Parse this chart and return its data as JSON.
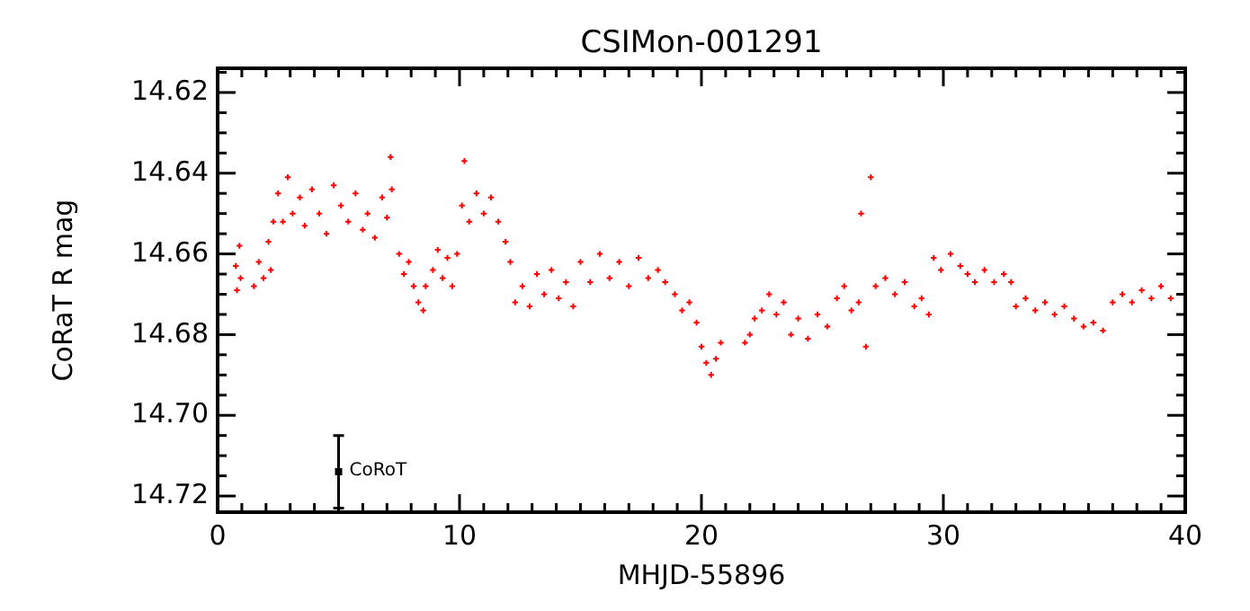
{
  "chart_data": {
    "type": "scatter",
    "title": "CSIMon-001291",
    "xlabel": "MHJD-55896",
    "ylabel": "CoRaT R mag",
    "marker": "cross",
    "grid": false,
    "xlim": [
      0,
      40
    ],
    "ylim": [
      14.724,
      14.614
    ],
    "xticks": [
      0,
      {
        "value": 1,
        "label": null
      },
      {
        "value": 2,
        "label": null
      },
      {
        "value": 3,
        "label": null
      },
      {
        "value": 4,
        "label": null
      },
      {
        "value": 5,
        "label": null
      },
      {
        "value": 6,
        "label": null
      },
      {
        "value": 7,
        "label": null
      },
      {
        "value": 8,
        "label": null
      },
      {
        "value": 9,
        "label": null
      },
      10,
      {
        "value": 11,
        "label": null
      },
      {
        "value": 12,
        "label": null
      },
      {
        "value": 13,
        "label": null
      },
      {
        "value": 14,
        "label": null
      },
      {
        "value": 15,
        "label": null
      },
      {
        "value": 16,
        "label": null
      },
      {
        "value": 17,
        "label": null
      },
      {
        "value": 18,
        "label": null
      },
      {
        "value": 19,
        "label": null
      },
      20,
      {
        "value": 21,
        "label": null
      },
      {
        "value": 22,
        "label": null
      },
      {
        "value": 23,
        "label": null
      },
      {
        "value": 24,
        "label": null
      },
      {
        "value": 25,
        "label": null
      },
      {
        "value": 26,
        "label": null
      },
      {
        "value": 27,
        "label": null
      },
      {
        "value": 28,
        "label": null
      },
      {
        "value": 29,
        "label": null
      },
      30,
      {
        "value": 31,
        "label": null
      },
      {
        "value": 32,
        "label": null
      },
      {
        "value": 33,
        "label": null
      },
      {
        "value": 34,
        "label": null
      },
      {
        "value": 35,
        "label": null
      },
      {
        "value": 36,
        "label": null
      },
      {
        "value": 37,
        "label": null
      },
      {
        "value": 38,
        "label": null
      },
      {
        "value": 39,
        "label": null
      },
      40
    ],
    "yticks": [
      {
        "value": 14.615,
        "label": null
      },
      {
        "value": 14.62,
        "label": "14.62"
      },
      {
        "value": 14.625,
        "label": null
      },
      {
        "value": 14.63,
        "label": null
      },
      {
        "value": 14.635,
        "label": null
      },
      {
        "value": 14.64,
        "label": "14.64"
      },
      {
        "value": 14.645,
        "label": null
      },
      {
        "value": 14.65,
        "label": null
      },
      {
        "value": 14.655,
        "label": null
      },
      {
        "value": 14.66,
        "label": "14.66"
      },
      {
        "value": 14.665,
        "label": null
      },
      {
        "value": 14.67,
        "label": null
      },
      {
        "value": 14.675,
        "label": null
      },
      {
        "value": 14.68,
        "label": "14.68"
      },
      {
        "value": 14.685,
        "label": null
      },
      {
        "value": 14.69,
        "label": null
      },
      {
        "value": 14.695,
        "label": null
      },
      {
        "value": 14.7,
        "label": "14.70"
      },
      {
        "value": 14.705,
        "label": null
      },
      {
        "value": 14.71,
        "label": null
      },
      {
        "value": 14.715,
        "label": null
      },
      {
        "value": 14.72,
        "label": "14.72"
      }
    ],
    "series": [
      {
        "color": "#ff0000",
        "x": [
          0.75,
          0.8,
          0.9,
          0.95,
          1.5,
          1.7,
          1.9,
          2.1,
          2.3,
          2.2,
          2.5,
          2.7,
          2.9,
          3.1,
          3.4,
          3.6,
          3.9,
          4.2,
          4.5,
          4.8,
          5.1,
          5.4,
          5.7,
          6.0,
          6.2,
          6.5,
          6.8,
          7.0,
          7.15,
          7.2,
          7.5,
          7.7,
          7.9,
          8.1,
          8.3,
          8.5,
          8.6,
          8.9,
          9.1,
          9.3,
          9.5,
          9.7,
          9.9,
          10.1,
          10.2,
          10.4,
          10.7,
          11.0,
          11.3,
          11.6,
          11.9,
          12.1,
          12.3,
          12.6,
          12.9,
          13.2,
          13.5,
          13.8,
          14.1,
          14.4,
          14.7,
          15.0,
          15.4,
          15.8,
          16.2,
          16.6,
          17.0,
          17.4,
          17.8,
          18.2,
          18.5,
          18.9,
          19.2,
          19.5,
          19.8,
          20.0,
          20.2,
          20.4,
          20.6,
          20.8,
          21.8,
          22.0,
          22.2,
          22.5,
          22.8,
          23.1,
          23.4,
          23.7,
          24.0,
          24.4,
          24.8,
          25.2,
          25.6,
          25.9,
          26.2,
          26.5,
          26.6,
          26.8,
          27.0,
          27.2,
          27.6,
          28.0,
          28.4,
          28.8,
          29.1,
          29.4,
          29.6,
          29.9,
          30.3,
          30.7,
          31.0,
          31.3,
          31.7,
          32.1,
          32.5,
          32.8,
          33.0,
          33.4,
          33.8,
          34.2,
          34.6,
          35.0,
          35.4,
          35.8,
          36.2,
          36.6,
          37.0,
          37.4,
          37.8,
          38.2,
          38.6,
          39.0,
          39.4
        ],
        "values": [
          14.663,
          14.669,
          14.658,
          14.666,
          14.668,
          14.662,
          14.666,
          14.657,
          14.652,
          14.664,
          14.645,
          14.652,
          14.641,
          14.65,
          14.646,
          14.653,
          14.644,
          14.65,
          14.655,
          14.643,
          14.648,
          14.652,
          14.645,
          14.654,
          14.65,
          14.656,
          14.646,
          14.651,
          14.636,
          14.644,
          14.66,
          14.665,
          14.662,
          14.668,
          14.672,
          14.674,
          14.668,
          14.664,
          14.659,
          14.666,
          14.661,
          14.668,
          14.66,
          14.648,
          14.637,
          14.652,
          14.645,
          14.65,
          14.646,
          14.652,
          14.657,
          14.662,
          14.672,
          14.668,
          14.673,
          14.665,
          14.67,
          14.664,
          14.671,
          14.667,
          14.673,
          14.662,
          14.667,
          14.66,
          14.666,
          14.662,
          14.668,
          14.661,
          14.666,
          14.664,
          14.667,
          14.67,
          14.674,
          14.672,
          14.677,
          14.683,
          14.687,
          14.69,
          14.686,
          14.682,
          14.682,
          14.68,
          14.676,
          14.674,
          14.67,
          14.675,
          14.672,
          14.68,
          14.676,
          14.681,
          14.675,
          14.678,
          14.671,
          14.668,
          14.674,
          14.672,
          14.65,
          14.683,
          14.641,
          14.668,
          14.666,
          14.67,
          14.667,
          14.673,
          14.671,
          14.675,
          14.661,
          14.664,
          14.66,
          14.663,
          14.665,
          14.667,
          14.664,
          14.667,
          14.665,
          14.667,
          14.673,
          14.671,
          14.674,
          14.672,
          14.675,
          14.673,
          14.676,
          14.678,
          14.677,
          14.679,
          14.672,
          14.67,
          14.672,
          14.669,
          14.671,
          14.668,
          14.671
        ]
      },
      {
        "name": "CoRoT",
        "color": "#000000",
        "marker": "square",
        "x": [
          5
        ],
        "values": [
          14.714
        ],
        "errors": [
          0.009
        ]
      }
    ]
  }
}
